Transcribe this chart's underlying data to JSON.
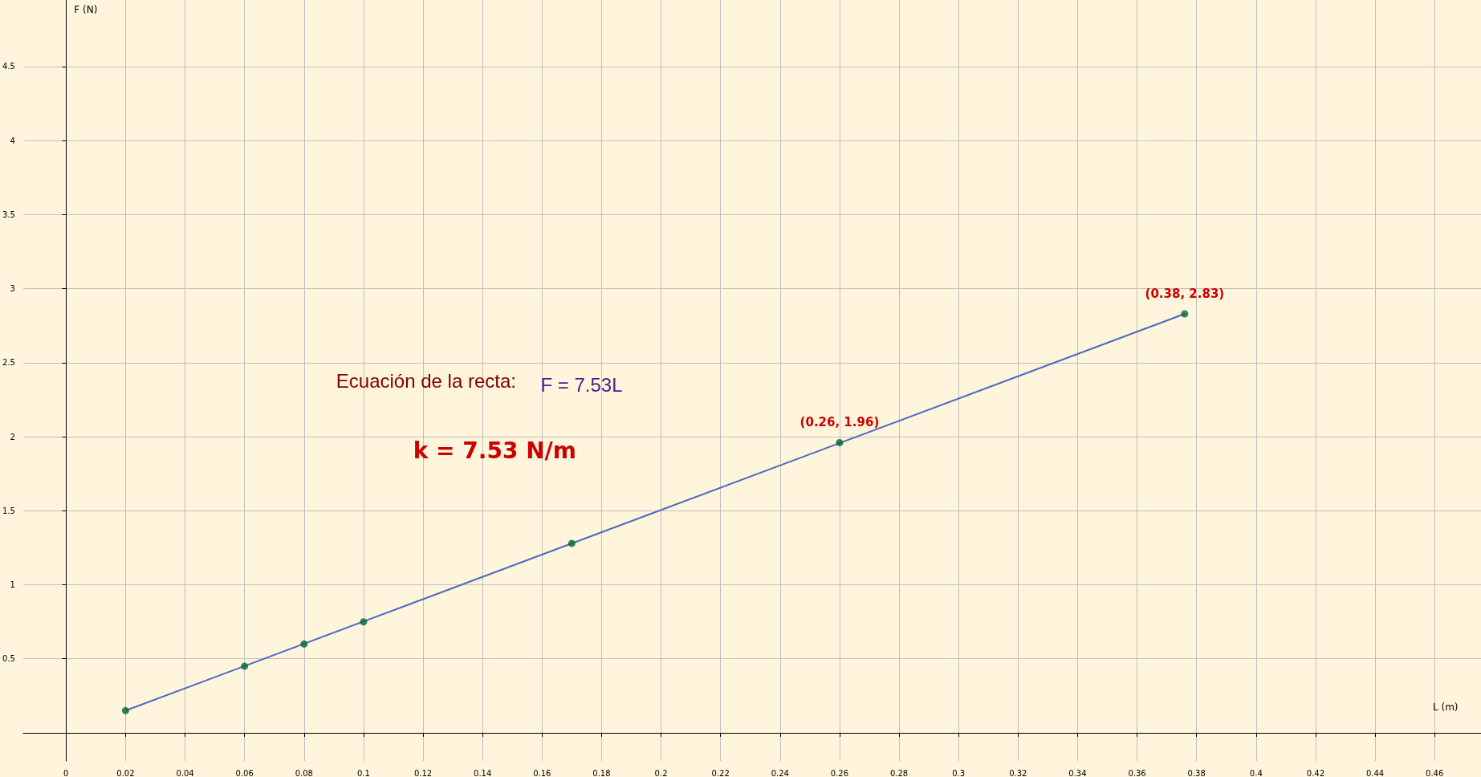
{
  "chart_data": {
    "type": "scatter",
    "xlabel": "L (m)",
    "ylabel": "F (N)",
    "xlim": [
      -0.0144,
      0.4756
    ],
    "ylim": [
      -0.19,
      4.95
    ],
    "xticks": [
      0,
      0.02,
      0.04,
      0.06,
      0.08,
      0.1,
      0.12,
      0.14,
      0.16,
      0.18,
      0.2,
      0.22,
      0.24,
      0.26,
      0.28,
      0.3,
      0.32,
      0.34,
      0.36,
      0.38,
      0.4,
      0.42,
      0.44,
      0.46
    ],
    "yticks": [
      0.5,
      1,
      1.5,
      2,
      2.5,
      3,
      3.5,
      4,
      4.5
    ],
    "grid": true,
    "series": [
      {
        "type": "line",
        "color": "#4a6bbd",
        "marker": "none",
        "x": [
          0.02,
          0.376
        ],
        "values": [
          0.15,
          2.83
        ]
      },
      {
        "color": "#006633",
        "marker": "circle",
        "x": [
          0.02,
          0.06,
          0.08,
          0.1,
          0.17,
          0.26,
          0.376
        ],
        "values": [
          0.15,
          0.45,
          0.6,
          0.75,
          1.28,
          1.96,
          2.83
        ]
      }
    ],
    "annotations": [
      {
        "text": "(0.26, 1.96)",
        "x": 0.26,
        "y": 1.96
      },
      {
        "text": "(0.38, 2.83)",
        "x": 0.376,
        "y": 2.83
      },
      "Ecuación de la recta:",
      "F = 7.53L",
      "k = 7.53 N/m"
    ]
  }
}
